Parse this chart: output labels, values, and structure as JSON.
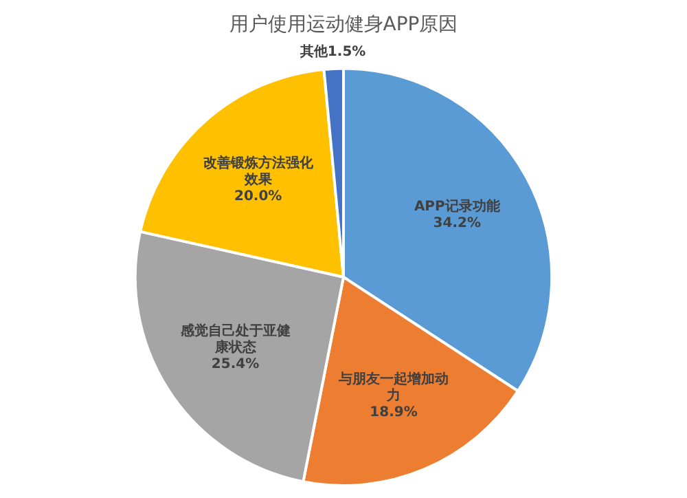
{
  "chart_data": {
    "type": "pie",
    "title": "用户使用运动健身APP原因",
    "categories": [
      "APP记录功能",
      "与朋友一起增加动力",
      "感觉自己处于亚健康状态",
      "改善锻炼方法强化效果",
      "其他"
    ],
    "values": [
      34.2,
      18.9,
      25.4,
      20.0,
      1.5
    ],
    "colors": [
      "#5b9bd5",
      "#ed7d31",
      "#a5a5a5",
      "#ffc000",
      "#4472c4"
    ],
    "value_labels": [
      "34.2%",
      "18.9%",
      "25.4%",
      "20.0%",
      "1.5%"
    ],
    "legend": false
  }
}
